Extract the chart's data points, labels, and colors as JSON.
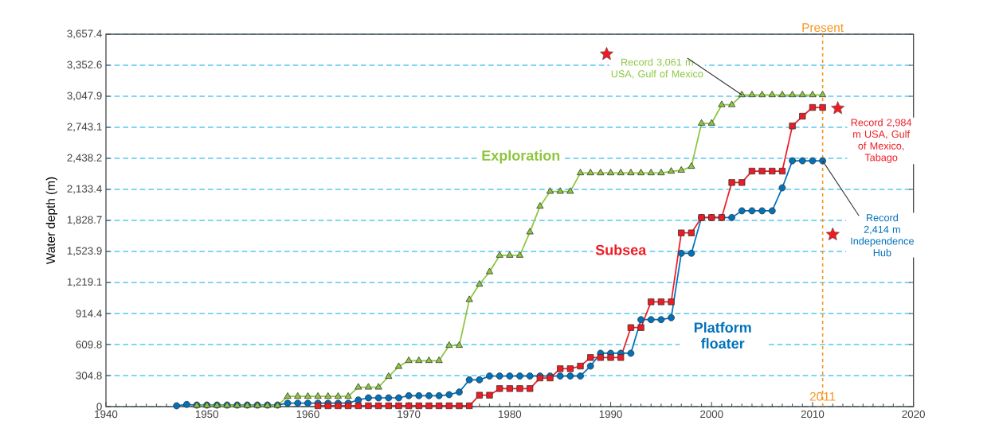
{
  "chart_data": {
    "type": "line",
    "ylabel": "Water depth (m)",
    "xlim": [
      1940,
      2020
    ],
    "xticks": [
      1940,
      1950,
      1960,
      1970,
      1980,
      1990,
      2000,
      2010,
      2020
    ],
    "ylim": [
      0,
      3657.4
    ],
    "yticks": [
      {
        "value": 0,
        "label": "0"
      },
      {
        "value": 304.8,
        "label": "304.8"
      },
      {
        "value": 609.8,
        "label": "609.8"
      },
      {
        "value": 914.4,
        "label": "914.4"
      },
      {
        "value": 1219.1,
        "label": "1,219.1"
      },
      {
        "value": 1523.9,
        "label": "1,523.9"
      },
      {
        "value": 1828.7,
        "label": "1,828.7"
      },
      {
        "value": 2133.4,
        "label": "2,133.4"
      },
      {
        "value": 2438.2,
        "label": "2,438.2"
      },
      {
        "value": 2743.1,
        "label": "2,743.1"
      },
      {
        "value": 3047.9,
        "label": "3,047.9"
      },
      {
        "value": 3352.6,
        "label": "3,352.6"
      },
      {
        "value": 3657.4,
        "label": "3,657.4"
      }
    ],
    "grid": "y",
    "series": [
      {
        "name": "Platform floater",
        "color": "#0072bc",
        "marker": "circle",
        "x": [
          1947,
          1948,
          1949,
          1950,
          1951,
          1952,
          1953,
          1954,
          1955,
          1956,
          1957,
          1958,
          1959,
          1960,
          1961,
          1962,
          1963,
          1964,
          1965,
          1966,
          1967,
          1968,
          1969,
          1970,
          1971,
          1972,
          1973,
          1974,
          1975,
          1976,
          1977,
          1978,
          1979,
          1980,
          1981,
          1982,
          1983,
          1984,
          1985,
          1986,
          1987,
          1988,
          1989,
          1990,
          1991,
          1992,
          1993,
          1994,
          1995,
          1996,
          1997,
          1998,
          1999,
          2000,
          2001,
          2002,
          2003,
          2004,
          2005,
          2006,
          2007,
          2008,
          2009,
          2010,
          2011
        ],
        "values": [
          8,
          21,
          15,
          15,
          15,
          15,
          15,
          15,
          15,
          15,
          15,
          34,
          34,
          34,
          34,
          34,
          34,
          34,
          65,
          86,
          86,
          86,
          86,
          107,
          107,
          107,
          107,
          117,
          143,
          263,
          263,
          300,
          300,
          300,
          300,
          300,
          300,
          300,
          300,
          300,
          300,
          398,
          524,
          524,
          524,
          524,
          854,
          854,
          854,
          873,
          1506,
          1506,
          1857,
          1857,
          1857,
          1857,
          1923,
          1923,
          1923,
          1923,
          2149,
          2414,
          2414,
          2414,
          2414
        ]
      },
      {
        "name": "Subsea",
        "color": "#ed1c24",
        "marker": "square",
        "x": [
          1961,
          1962,
          1963,
          1964,
          1965,
          1966,
          1967,
          1968,
          1969,
          1970,
          1971,
          1972,
          1973,
          1974,
          1975,
          1976,
          1977,
          1978,
          1979,
          1980,
          1981,
          1982,
          1983,
          1984,
          1985,
          1986,
          1987,
          1988,
          1989,
          1990,
          1991,
          1992,
          1993,
          1994,
          1995,
          1996,
          1997,
          1998,
          1999,
          2000,
          2001,
          2002,
          2003,
          2004,
          2005,
          2006,
          2007,
          2008,
          2009,
          2010,
          2011
        ],
        "values": [
          8,
          8,
          8,
          8,
          8,
          8,
          8,
          8,
          8,
          8,
          8,
          8,
          8,
          8,
          8,
          8,
          112,
          112,
          177,
          177,
          177,
          177,
          281,
          281,
          372,
          372,
          398,
          482,
          482,
          482,
          482,
          776,
          776,
          1029,
          1029,
          1029,
          1706,
          1706,
          1857,
          1857,
          1857,
          2201,
          2201,
          2313,
          2313,
          2313,
          2313,
          2756,
          2852,
          2938,
          2938
        ]
      },
      {
        "name": "Exploration",
        "color": "#8dc63f",
        "marker": "triangle",
        "x": [
          1949,
          1950,
          1951,
          1952,
          1953,
          1954,
          1955,
          1956,
          1957,
          1958,
          1959,
          1960,
          1961,
          1962,
          1963,
          1964,
          1965,
          1966,
          1967,
          1968,
          1969,
          1970,
          1971,
          1972,
          1973,
          1974,
          1975,
          1976,
          1977,
          1978,
          1979,
          1980,
          1981,
          1982,
          1983,
          1984,
          1985,
          1986,
          1987,
          1988,
          1989,
          1990,
          1991,
          1992,
          1993,
          1994,
          1995,
          1996,
          1997,
          1998,
          1999,
          2000,
          2001,
          2002,
          2003,
          2004,
          2005,
          2006,
          2007,
          2008,
          2009,
          2010,
          2011
        ],
        "values": [
          10,
          10,
          10,
          10,
          10,
          10,
          10,
          10,
          10,
          100,
          100,
          100,
          100,
          100,
          100,
          100,
          190,
          190,
          190,
          295,
          393,
          451,
          451,
          451,
          451,
          600,
          600,
          1050,
          1201,
          1323,
          1485,
          1485,
          1485,
          1714,
          1967,
          2113,
          2113,
          2113,
          2295,
          2295,
          2295,
          2295,
          2295,
          2295,
          2295,
          2295,
          2295,
          2310,
          2320,
          2358,
          2782,
          2782,
          2964,
          2964,
          3061,
          3061,
          3061,
          3061,
          3061,
          3061,
          3061,
          3061,
          3061
        ]
      }
    ],
    "ref_lines": [
      {
        "axis": "x",
        "value": 2011,
        "label": "2011",
        "color": "#f7941d",
        "line_style": "dashed"
      }
    ],
    "annotations": [
      "Present",
      {
        "text": "Record 3,061 m USA, Gulf of Mexico",
        "x": 2003,
        "y": 3061
      },
      "Record 2,984 m USA, Gulf of Mexico, Tabago",
      {
        "text": "Record 2,414 m Independence Hub",
        "x": 2011,
        "y": 2414
      }
    ]
  }
}
